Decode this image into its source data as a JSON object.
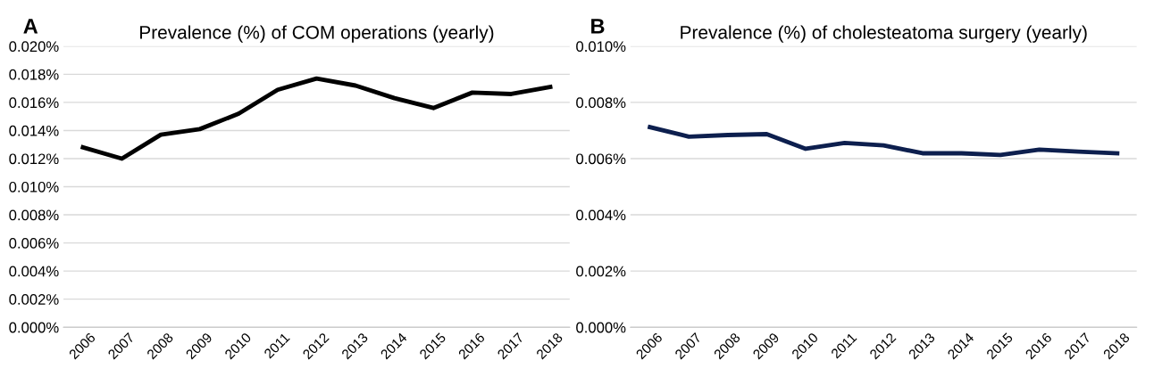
{
  "chart_data": [
    {
      "type": "line",
      "title": "Prevalence (%) of COM operations (yearly)",
      "annotations": [
        "A"
      ],
      "categories": [
        "2006",
        "2007",
        "2008",
        "2009",
        "2010",
        "2011",
        "2012",
        "2013",
        "2014",
        "2015",
        "2016",
        "2017",
        "2018"
      ],
      "series": [
        {
          "color": "#000000",
          "values": [
            0.0128,
            0.012,
            0.0137,
            0.0141,
            0.0152,
            0.0169,
            0.0177,
            0.0172,
            0.0163,
            0.0156,
            0.0167,
            0.0166,
            0.0171
          ]
        }
      ],
      "ylim": [
        0,
        0.02
      ],
      "yticks": [
        {
          "value": 0,
          "label": "0.000%"
        },
        {
          "value": 0.002,
          "label": "0.002%"
        },
        {
          "value": 0.004,
          "label": "0.004%"
        },
        {
          "value": 0.006,
          "label": "0.006%"
        },
        {
          "value": 0.008,
          "label": "0.008%"
        },
        {
          "value": 0.01,
          "label": "0.010%"
        },
        {
          "value": 0.012,
          "label": "0.012%"
        },
        {
          "value": 0.014,
          "label": "0.014%"
        },
        {
          "value": 0.016,
          "label": "0.016%"
        },
        {
          "value": 0.018,
          "label": "0.018%"
        },
        {
          "value": 0.02,
          "label": "0.020%"
        }
      ],
      "grid": "y",
      "marker": "none",
      "line_style": "solid"
    },
    {
      "type": "line",
      "title": "Prevalence (%) of cholesteatoma surgery (yearly)",
      "annotations": [
        "B"
      ],
      "categories": [
        "2006",
        "2007",
        "2008",
        "2009",
        "2010",
        "2011",
        "2012",
        "2013",
        "2014",
        "2015",
        "2016",
        "2017",
        "2018"
      ],
      "series": [
        {
          "color": "#0d1f4e",
          "values": [
            0.00712,
            0.00678,
            0.00684,
            0.00687,
            0.00635,
            0.00656,
            0.00647,
            0.00619,
            0.00619,
            0.00613,
            0.00632,
            0.00625,
            0.00619
          ]
        }
      ],
      "ylim": [
        0,
        0.01
      ],
      "yticks": [
        {
          "value": 0,
          "label": "0.000%"
        },
        {
          "value": 0.002,
          "label": "0.002%"
        },
        {
          "value": 0.004,
          "label": "0.004%"
        },
        {
          "value": 0.006,
          "label": "0.006%"
        },
        {
          "value": 0.008,
          "label": "0.008%"
        },
        {
          "value": 0.01,
          "label": "0.010%"
        }
      ],
      "grid": "y",
      "marker": "none",
      "line_style": "solid"
    }
  ]
}
